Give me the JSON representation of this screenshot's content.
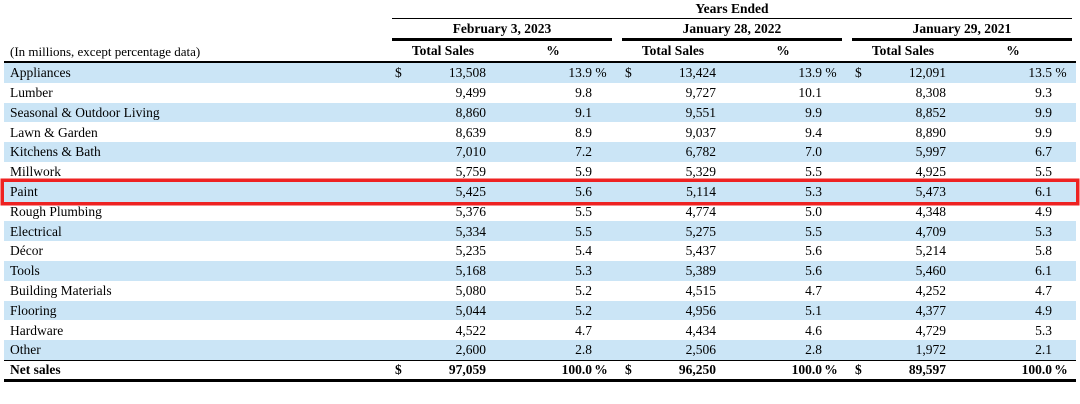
{
  "table": {
    "years_ended_label": "Years Ended",
    "row_label_header": "(In millions, except percentage data)",
    "periods": [
      {
        "date": "February 3, 2023",
        "sales_header": "Total Sales",
        "pct_header": "%"
      },
      {
        "date": "January 28, 2022",
        "sales_header": "Total Sales",
        "pct_header": "%"
      },
      {
        "date": "January 29, 2021",
        "sales_header": "Total Sales",
        "pct_header": "%"
      }
    ],
    "rows": [
      {
        "label": "Appliances",
        "shaded": true,
        "highlighted": false,
        "cols": [
          {
            "dollar": "$",
            "sales": "13,508",
            "pct": "13.9",
            "pct_sign": "%"
          },
          {
            "dollar": "$",
            "sales": "13,424",
            "pct": "13.9",
            "pct_sign": "%"
          },
          {
            "dollar": "$",
            "sales": "12,091",
            "pct": "13.5",
            "pct_sign": "%"
          }
        ]
      },
      {
        "label": "Lumber",
        "shaded": false,
        "highlighted": false,
        "cols": [
          {
            "dollar": "",
            "sales": "9,499",
            "pct": "9.8",
            "pct_sign": ""
          },
          {
            "dollar": "",
            "sales": "9,727",
            "pct": "10.1",
            "pct_sign": ""
          },
          {
            "dollar": "",
            "sales": "8,308",
            "pct": "9.3",
            "pct_sign": ""
          }
        ]
      },
      {
        "label": "Seasonal & Outdoor Living",
        "shaded": true,
        "highlighted": false,
        "cols": [
          {
            "dollar": "",
            "sales": "8,860",
            "pct": "9.1",
            "pct_sign": ""
          },
          {
            "dollar": "",
            "sales": "9,551",
            "pct": "9.9",
            "pct_sign": ""
          },
          {
            "dollar": "",
            "sales": "8,852",
            "pct": "9.9",
            "pct_sign": ""
          }
        ]
      },
      {
        "label": "Lawn & Garden",
        "shaded": false,
        "highlighted": false,
        "cols": [
          {
            "dollar": "",
            "sales": "8,639",
            "pct": "8.9",
            "pct_sign": ""
          },
          {
            "dollar": "",
            "sales": "9,037",
            "pct": "9.4",
            "pct_sign": ""
          },
          {
            "dollar": "",
            "sales": "8,890",
            "pct": "9.9",
            "pct_sign": ""
          }
        ]
      },
      {
        "label": "Kitchens & Bath",
        "shaded": true,
        "highlighted": false,
        "cols": [
          {
            "dollar": "",
            "sales": "7,010",
            "pct": "7.2",
            "pct_sign": ""
          },
          {
            "dollar": "",
            "sales": "6,782",
            "pct": "7.0",
            "pct_sign": ""
          },
          {
            "dollar": "",
            "sales": "5,997",
            "pct": "6.7",
            "pct_sign": ""
          }
        ]
      },
      {
        "label": "Millwork",
        "shaded": false,
        "highlighted": false,
        "cols": [
          {
            "dollar": "",
            "sales": "5,759",
            "pct": "5.9",
            "pct_sign": ""
          },
          {
            "dollar": "",
            "sales": "5,329",
            "pct": "5.5",
            "pct_sign": ""
          },
          {
            "dollar": "",
            "sales": "4,925",
            "pct": "5.5",
            "pct_sign": ""
          }
        ]
      },
      {
        "label": "Paint",
        "shaded": true,
        "highlighted": true,
        "cols": [
          {
            "dollar": "",
            "sales": "5,425",
            "pct": "5.6",
            "pct_sign": ""
          },
          {
            "dollar": "",
            "sales": "5,114",
            "pct": "5.3",
            "pct_sign": ""
          },
          {
            "dollar": "",
            "sales": "5,473",
            "pct": "6.1",
            "pct_sign": ""
          }
        ]
      },
      {
        "label": "Rough Plumbing",
        "shaded": false,
        "highlighted": false,
        "cols": [
          {
            "dollar": "",
            "sales": "5,376",
            "pct": "5.5",
            "pct_sign": ""
          },
          {
            "dollar": "",
            "sales": "4,774",
            "pct": "5.0",
            "pct_sign": ""
          },
          {
            "dollar": "",
            "sales": "4,348",
            "pct": "4.9",
            "pct_sign": ""
          }
        ]
      },
      {
        "label": "Electrical",
        "shaded": true,
        "highlighted": false,
        "cols": [
          {
            "dollar": "",
            "sales": "5,334",
            "pct": "5.5",
            "pct_sign": ""
          },
          {
            "dollar": "",
            "sales": "5,275",
            "pct": "5.5",
            "pct_sign": ""
          },
          {
            "dollar": "",
            "sales": "4,709",
            "pct": "5.3",
            "pct_sign": ""
          }
        ]
      },
      {
        "label": "Décor",
        "shaded": false,
        "highlighted": false,
        "cols": [
          {
            "dollar": "",
            "sales": "5,235",
            "pct": "5.4",
            "pct_sign": ""
          },
          {
            "dollar": "",
            "sales": "5,437",
            "pct": "5.6",
            "pct_sign": ""
          },
          {
            "dollar": "",
            "sales": "5,214",
            "pct": "5.8",
            "pct_sign": ""
          }
        ]
      },
      {
        "label": "Tools",
        "shaded": true,
        "highlighted": false,
        "cols": [
          {
            "dollar": "",
            "sales": "5,168",
            "pct": "5.3",
            "pct_sign": ""
          },
          {
            "dollar": "",
            "sales": "5,389",
            "pct": "5.6",
            "pct_sign": ""
          },
          {
            "dollar": "",
            "sales": "5,460",
            "pct": "6.1",
            "pct_sign": ""
          }
        ]
      },
      {
        "label": "Building Materials",
        "shaded": false,
        "highlighted": false,
        "cols": [
          {
            "dollar": "",
            "sales": "5,080",
            "pct": "5.2",
            "pct_sign": ""
          },
          {
            "dollar": "",
            "sales": "4,515",
            "pct": "4.7",
            "pct_sign": ""
          },
          {
            "dollar": "",
            "sales": "4,252",
            "pct": "4.7",
            "pct_sign": ""
          }
        ]
      },
      {
        "label": "Flooring",
        "shaded": true,
        "highlighted": false,
        "cols": [
          {
            "dollar": "",
            "sales": "5,044",
            "pct": "5.2",
            "pct_sign": ""
          },
          {
            "dollar": "",
            "sales": "4,956",
            "pct": "5.1",
            "pct_sign": ""
          },
          {
            "dollar": "",
            "sales": "4,377",
            "pct": "4.9",
            "pct_sign": ""
          }
        ]
      },
      {
        "label": "Hardware",
        "shaded": false,
        "highlighted": false,
        "cols": [
          {
            "dollar": "",
            "sales": "4,522",
            "pct": "4.7",
            "pct_sign": ""
          },
          {
            "dollar": "",
            "sales": "4,434",
            "pct": "4.6",
            "pct_sign": ""
          },
          {
            "dollar": "",
            "sales": "4,729",
            "pct": "5.3",
            "pct_sign": ""
          }
        ]
      },
      {
        "label": "Other",
        "shaded": true,
        "highlighted": false,
        "cols": [
          {
            "dollar": "",
            "sales": "2,600",
            "pct": "2.8",
            "pct_sign": ""
          },
          {
            "dollar": "",
            "sales": "2,506",
            "pct": "2.8",
            "pct_sign": ""
          },
          {
            "dollar": "",
            "sales": "1,972",
            "pct": "2.1",
            "pct_sign": ""
          }
        ]
      }
    ],
    "total_row": {
      "label": "Net sales",
      "cols": [
        {
          "dollar": "$",
          "sales": "97,059",
          "pct": "100.0",
          "pct_sign": "%"
        },
        {
          "dollar": "$",
          "sales": "96,250",
          "pct": "100.0",
          "pct_sign": "%"
        },
        {
          "dollar": "$",
          "sales": "89,597",
          "pct": "100.0",
          "pct_sign": "%"
        }
      ]
    },
    "highlight": {
      "row": "Paint"
    }
  },
  "colors": {
    "row_shade": "#cbe5f6",
    "highlight_border": "#ee2222",
    "rule_color": "#000000"
  }
}
